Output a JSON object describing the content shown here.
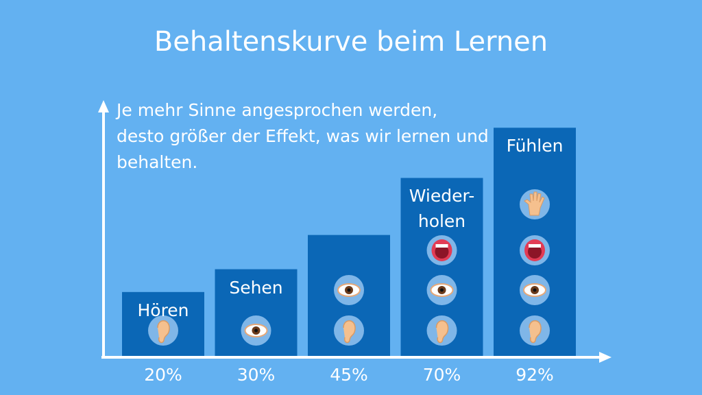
{
  "chart_data": {
    "type": "bar",
    "title": "Behaltenskurve beim Lernen",
    "annotation": "Je mehr Sinne angesprochen werden, desto größer der Effekt, was wir lernen und behalten.",
    "categories": [
      "Hören",
      "Sehen",
      null,
      "Wieder-\nholen",
      "Fühlen"
    ],
    "values": [
      20,
      30,
      45,
      70,
      92
    ],
    "value_labels": [
      "20%",
      "30%",
      "45%",
      "70%",
      "92%"
    ],
    "color": "#0b67b6",
    "ylim": [
      -8,
      102
    ]
  }
}
